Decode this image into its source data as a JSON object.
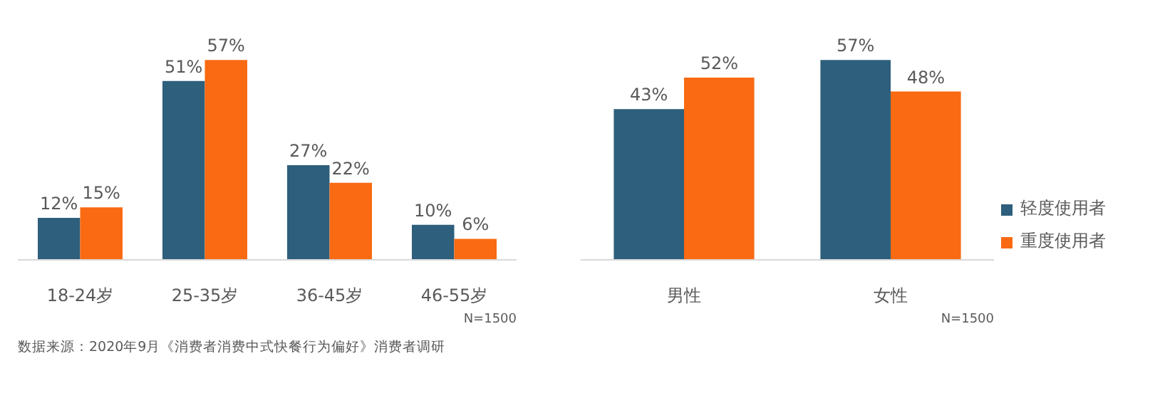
{
  "chart_data": [
    {
      "type": "bar",
      "categories": [
        "18-24岁",
        "25-35岁",
        "36-45岁",
        "46-55岁"
      ],
      "series": [
        {
          "color": "#2e5f7c",
          "values": [
            12,
            51,
            27,
            10
          ],
          "value_labels": [
            "12%",
            "51%",
            "27%",
            "10%"
          ]
        },
        {
          "color": "#f96a12",
          "values": [
            15,
            57,
            22,
            6
          ],
          "value_labels": [
            "15%",
            "57%",
            "22%",
            "6%"
          ]
        }
      ],
      "legend": false,
      "grid": false,
      "annotations": [
        "N=1500",
        "数据来源：2020年9月《消费者消费中式快餐行为偏好》消费者调研"
      ]
    },
    {
      "type": "bar",
      "categories": [
        "男性",
        "女性"
      ],
      "series": [
        {
          "name": "轻度使用者",
          "color": "#2e5f7c",
          "values": [
            43,
            57
          ],
          "value_labels": [
            "43%",
            "57%"
          ]
        },
        {
          "name": "重度使用者",
          "color": "#f96a12",
          "values": [
            52,
            48
          ],
          "value_labels": [
            "52%",
            "48%"
          ]
        }
      ],
      "legend": "right",
      "grid": false,
      "annotations": [
        "N=1500"
      ]
    }
  ]
}
